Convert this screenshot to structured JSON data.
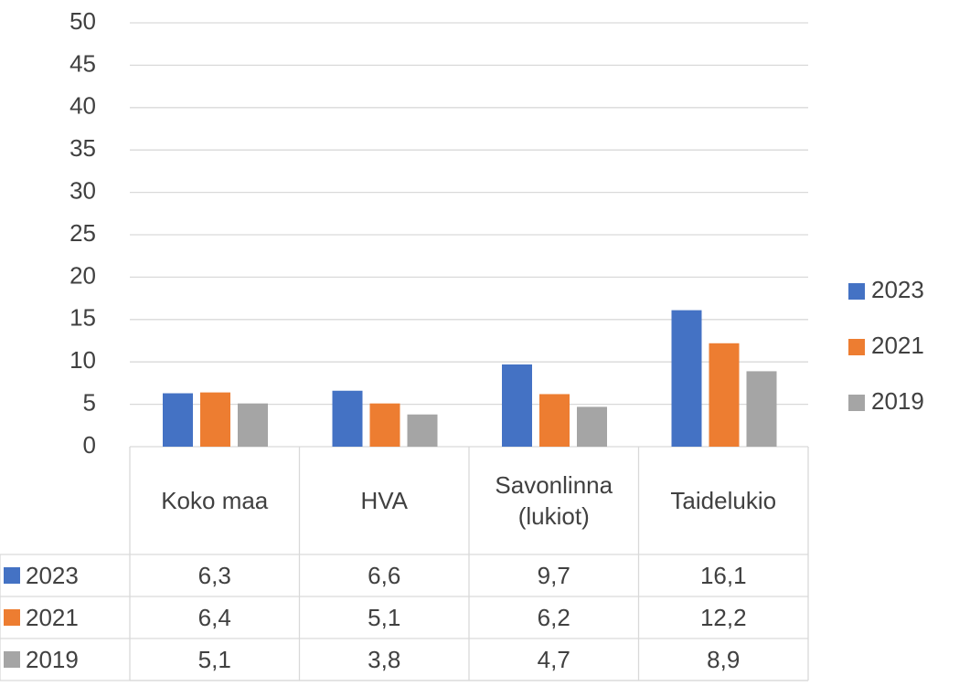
{
  "chart_data": {
    "type": "bar",
    "categories": [
      "Koko maa",
      "HVA",
      "Savonlinna (lukiot)",
      "Taidelukio"
    ],
    "series": [
      {
        "name": "2023",
        "color": "#4472c4",
        "values": [
          6.3,
          6.6,
          9.7,
          16.1
        ],
        "value_labels": [
          "6,3",
          "6,6",
          "9,7",
          "16,1"
        ]
      },
      {
        "name": "2021",
        "color": "#ed7d31",
        "values": [
          6.4,
          5.1,
          6.2,
          12.2
        ],
        "value_labels": [
          "6,4",
          "5,1",
          "6,2",
          "12,2"
        ]
      },
      {
        "name": "2019",
        "color": "#a5a5a5",
        "values": [
          5.1,
          3.8,
          4.7,
          8.9
        ],
        "value_labels": [
          "5,1",
          "3,8",
          "4,7",
          "8,9"
        ]
      }
    ],
    "ylim": [
      0,
      50
    ],
    "yticks": [
      0,
      5,
      10,
      15,
      20,
      25,
      30,
      35,
      40,
      45,
      50
    ],
    "grid": true,
    "legend": "right",
    "data_table": true
  }
}
